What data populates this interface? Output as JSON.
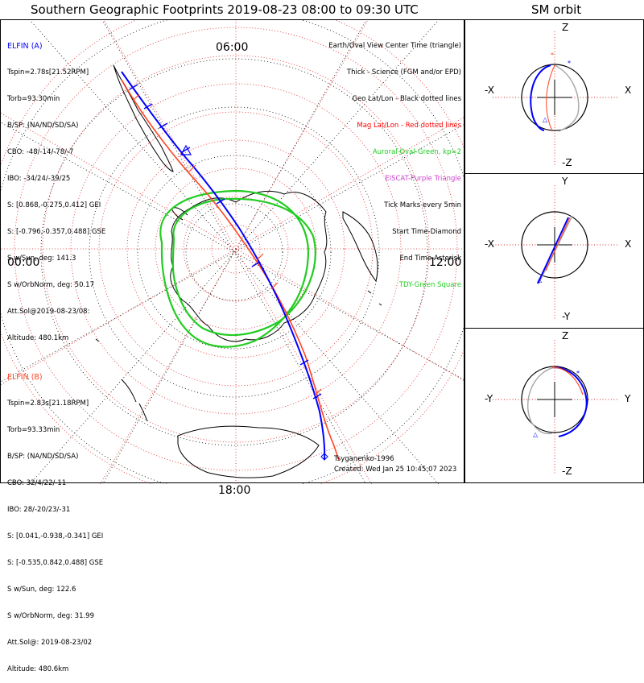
{
  "title": "Southern Geographic Footprints 2019-08-23 08:00 to 09:30 UTC",
  "sm_title": "SM orbit",
  "map": {
    "mlt_labels": {
      "top": "06:00",
      "left": "00:00",
      "right": "12:00",
      "bottom": "18:00"
    }
  },
  "legend": {
    "lines": [
      "Earth/Oval View Center Time (triangle)",
      "Thick - Science (FGM and/or EPD)",
      "Geo Lat/Lon - Black dotted lines",
      "Mag Lat/Lon - Red dotted lines",
      "Auroral Oval-Green, kp=2",
      "EISCAT-Purple Triangle",
      "Tick Marks every 5min",
      "Start Time-Diamond",
      "End Time-Asterisk",
      "TDY-Green Square"
    ],
    "colors": [
      "#000000",
      "#000000",
      "#000000",
      "#ff0000",
      "#22cc22",
      "#cc44cc",
      "#000000",
      "#000000",
      "#000000",
      "#22cc22"
    ]
  },
  "probe_a": {
    "name": "ELFIN (A)",
    "color": "#0000ff",
    "lines": [
      "Tspin=2.78s[21.52RPM]",
      "Torb=93.30min",
      "B/SP: (NA/ND/SD/SA)",
      "CBO: -48/-14/-78/-7",
      "IBO: -34/24/-39/25",
      "S: [0.868,-0.275,0.412] GEI",
      "S: [-0.796,-0.357,0.488] GSE",
      "S w/Sun, deg: 141.3",
      "S w/OrbNorm, deg: 50.17",
      "Att.Sol@2019-08-23/08:",
      "Altitude: 480.1km"
    ]
  },
  "probe_b": {
    "name": "ELFIN (B)",
    "color": "#ff4422",
    "lines": [
      "Tspin=2.83s[21.18RPM]",
      "Torb=93.33min",
      "B/SP: (NA/ND/SD/SA)",
      "CBO: 32/4/22/-11",
      "IBO: 28/-20/23/-31",
      "S: [0.041,-0.938,-0.341] GEI",
      "S: [-0.535,0.842,0.488] GSE",
      "S w/Sun, deg: 122.6",
      "S w/OrbNorm, deg: 31.99",
      "Att.Sol@: 2019-08-23/02",
      "Altitude: 480.6km"
    ]
  },
  "model_note": "Tsyganenko-1996",
  "created_note": "Created: Wed Jan 25 10:45:07 2023",
  "sm_panels": {
    "xz": {
      "top": "Z",
      "bottom": "-Z",
      "left": "-X",
      "right": "X"
    },
    "xy": {
      "top": "Y",
      "bottom": "-Y",
      "left": "-X",
      "right": "X"
    },
    "yz": {
      "top": "Z",
      "bottom": "-Z",
      "left": "-Y",
      "right": "Y"
    }
  }
}
